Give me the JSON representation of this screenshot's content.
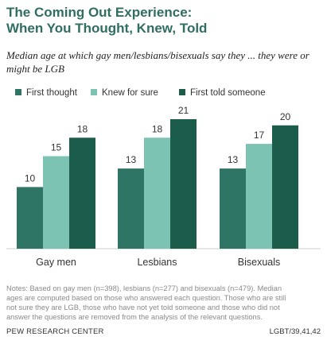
{
  "title_line1": "The Coming Out Experience:",
  "title_line2": "When You Thought, Knew, Told",
  "subtitle_line1": "Median age at which gay men/lesbians/bisexuals say they ... they were or",
  "subtitle_line2": "might be LGB",
  "notes_line1": "Notes: Based on gay men (n=398), lesbians (n=277) and bisexuals (n=479). Median",
  "notes_line2": "ages are computed based on those who answered each question. Those who are still",
  "notes_line3": "not sure they are LGB, those who have not yet told someone and those who did not",
  "notes_line4": "answer the questions are removed from the analysis of the relevant questions.",
  "source": "PEW RESEARCH CENTER",
  "code": "LGBT/39,41,42",
  "chart_data": {
    "type": "bar",
    "categories": [
      "Gay men",
      "Lesbians",
      "Bisexuals"
    ],
    "series": [
      {
        "name": "First thought",
        "values": [
          10,
          13,
          13
        ],
        "color": "#2e7565"
      },
      {
        "name": "Knew for sure",
        "values": [
          15,
          18,
          17
        ],
        "color": "#7cc3b4"
      },
      {
        "name": "First told someone",
        "values": [
          18,
          21,
          20
        ],
        "color": "#1c5c4b"
      }
    ],
    "ylim": [
      0,
      21
    ],
    "legend_position": "top",
    "grid": false,
    "data_labels": true
  }
}
